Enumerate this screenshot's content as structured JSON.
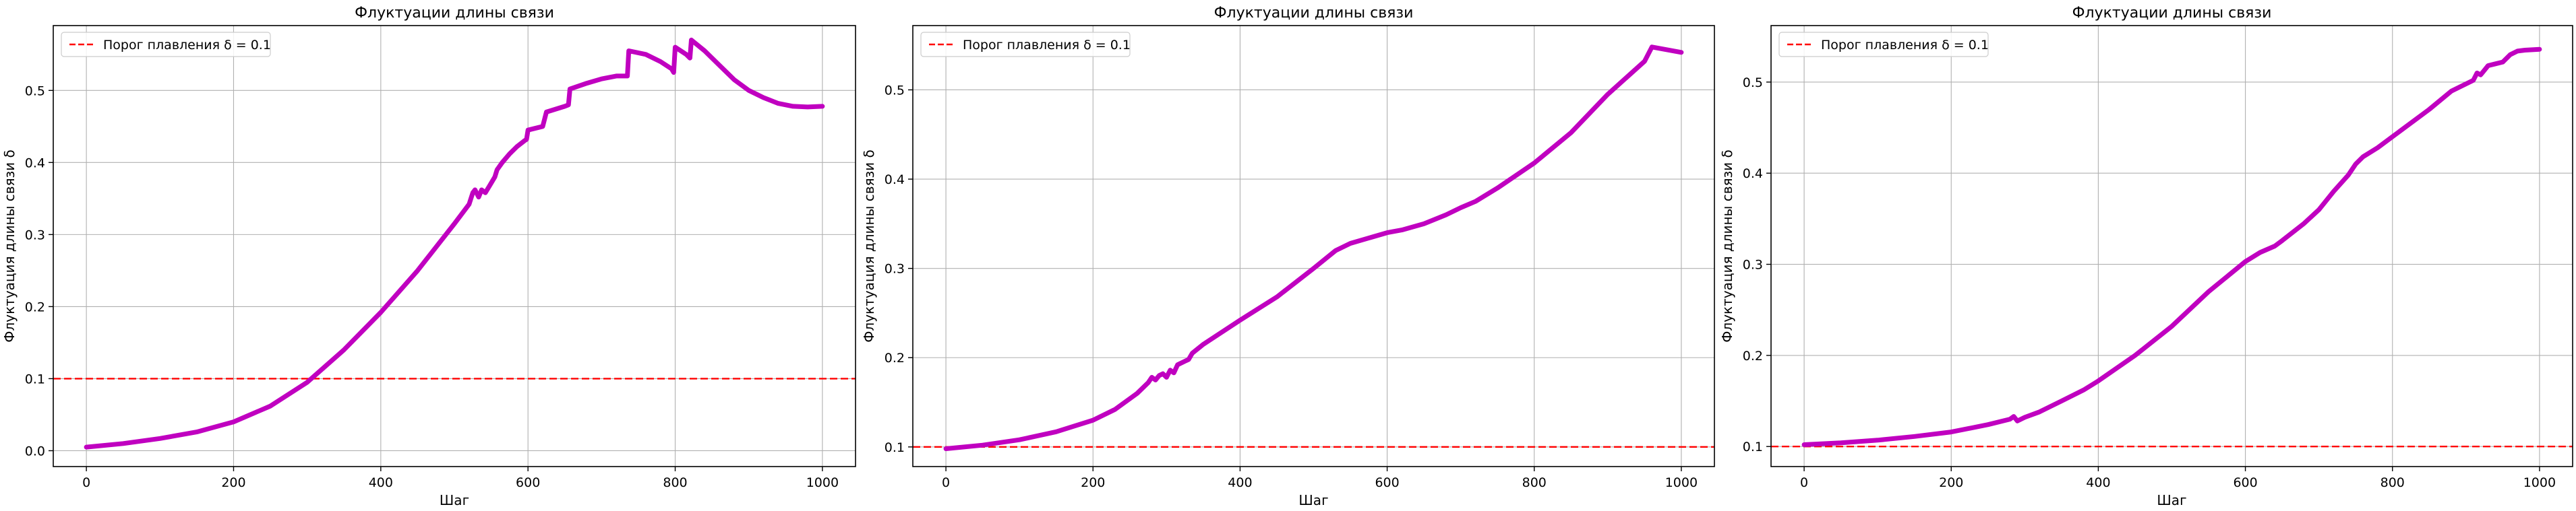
{
  "chart_data": [
    {
      "type": "line",
      "title": "Флуктуации длины связи",
      "xlabel": "Шаг",
      "ylabel": "Флуктуация длины связи δ",
      "xlim": [
        -45,
        1045
      ],
      "ylim": [
        -0.022,
        0.59
      ],
      "xticks": [
        0,
        200,
        400,
        600,
        800,
        1000
      ],
      "yticks": [
        0.0,
        0.1,
        0.2,
        0.3,
        0.4,
        0.5
      ],
      "grid": true,
      "legend_position": "top-left",
      "threshold": {
        "label": "Порог плавления δ = 0.1",
        "value": 0.1,
        "color": "#ff0000",
        "style": "dashed"
      },
      "series": [
        {
          "color": "#c000c0",
          "points": [
            [
              0,
              0.005
            ],
            [
              50,
              0.01
            ],
            [
              100,
              0.017
            ],
            [
              150,
              0.026
            ],
            [
              200,
              0.04
            ],
            [
              250,
              0.062
            ],
            [
              300,
              0.095
            ],
            [
              350,
              0.14
            ],
            [
              400,
              0.192
            ],
            [
              450,
              0.25
            ],
            [
              500,
              0.315
            ],
            [
              520,
              0.342
            ],
            [
              525,
              0.358
            ],
            [
              528,
              0.362
            ],
            [
              533,
              0.352
            ],
            [
              537,
              0.362
            ],
            [
              542,
              0.358
            ],
            [
              548,
              0.368
            ],
            [
              555,
              0.38
            ],
            [
              558,
              0.39
            ],
            [
              565,
              0.4
            ],
            [
              575,
              0.412
            ],
            [
              585,
              0.422
            ],
            [
              595,
              0.43
            ],
            [
              598,
              0.432
            ],
            [
              600,
              0.445
            ],
            [
              620,
              0.45
            ],
            [
              625,
              0.47
            ],
            [
              650,
              0.478
            ],
            [
              655,
              0.48
            ],
            [
              657,
              0.502
            ],
            [
              680,
              0.51
            ],
            [
              700,
              0.516
            ],
            [
              720,
              0.52
            ],
            [
              735,
              0.52
            ],
            [
              737,
              0.555
            ],
            [
              760,
              0.55
            ],
            [
              780,
              0.54
            ],
            [
              795,
              0.53
            ],
            [
              798,
              0.525
            ],
            [
              800,
              0.56
            ],
            [
              815,
              0.55
            ],
            [
              820,
              0.545
            ],
            [
              822,
              0.57
            ],
            [
              840,
              0.555
            ],
            [
              860,
              0.535
            ],
            [
              880,
              0.515
            ],
            [
              900,
              0.5
            ],
            [
              920,
              0.49
            ],
            [
              940,
              0.482
            ],
            [
              960,
              0.478
            ],
            [
              980,
              0.477
            ],
            [
              1000,
              0.478
            ]
          ]
        }
      ]
    },
    {
      "type": "line",
      "title": "Флуктуации длины связи",
      "xlabel": "Шаг",
      "ylabel": "Флуктуация длины связи δ",
      "xlim": [
        -45,
        1045
      ],
      "ylim": [
        0.078,
        0.572
      ],
      "xticks": [
        0,
        200,
        400,
        600,
        800,
        1000
      ],
      "yticks": [
        0.1,
        0.2,
        0.3,
        0.4,
        0.5
      ],
      "grid": true,
      "legend_position": "top-left",
      "threshold": {
        "label": "Порог плавления δ = 0.1",
        "value": 0.1,
        "color": "#ff0000",
        "style": "dashed"
      },
      "series": [
        {
          "color": "#c000c0",
          "points": [
            [
              0,
              0.098
            ],
            [
              50,
              0.102
            ],
            [
              100,
              0.108
            ],
            [
              150,
              0.117
            ],
            [
              200,
              0.13
            ],
            [
              230,
              0.142
            ],
            [
              260,
              0.16
            ],
            [
              275,
              0.172
            ],
            [
              280,
              0.178
            ],
            [
              285,
              0.175
            ],
            [
              290,
              0.18
            ],
            [
              295,
              0.182
            ],
            [
              300,
              0.178
            ],
            [
              305,
              0.186
            ],
            [
              310,
              0.183
            ],
            [
              315,
              0.192
            ],
            [
              325,
              0.196
            ],
            [
              330,
              0.198
            ],
            [
              335,
              0.205
            ],
            [
              350,
              0.215
            ],
            [
              400,
              0.242
            ],
            [
              450,
              0.268
            ],
            [
              500,
              0.3
            ],
            [
              530,
              0.32
            ],
            [
              550,
              0.328
            ],
            [
              600,
              0.34
            ],
            [
              620,
              0.343
            ],
            [
              650,
              0.35
            ],
            [
              680,
              0.36
            ],
            [
              700,
              0.368
            ],
            [
              720,
              0.375
            ],
            [
              750,
              0.39
            ],
            [
              800,
              0.418
            ],
            [
              850,
              0.452
            ],
            [
              900,
              0.495
            ],
            [
              950,
              0.532
            ],
            [
              960,
              0.548
            ],
            [
              980,
              0.545
            ],
            [
              1000,
              0.542
            ]
          ]
        }
      ]
    },
    {
      "type": "line",
      "title": "Флуктуации длины связи",
      "xlabel": "Шаг",
      "ylabel": "Флуктуация длины связи δ",
      "xlim": [
        -45,
        1045
      ],
      "ylim": [
        0.078,
        0.562
      ],
      "xticks": [
        0,
        200,
        400,
        600,
        800,
        1000
      ],
      "yticks": [
        0.1,
        0.2,
        0.3,
        0.4,
        0.5
      ],
      "grid": true,
      "legend_position": "top-left",
      "threshold": {
        "label": "Порог плавления δ = 0.1",
        "value": 0.1,
        "color": "#ff0000",
        "style": "dashed"
      },
      "series": [
        {
          "color": "#c000c0",
          "points": [
            [
              0,
              0.102
            ],
            [
              50,
              0.104
            ],
            [
              100,
              0.107
            ],
            [
              150,
              0.111
            ],
            [
              200,
              0.116
            ],
            [
              250,
              0.124
            ],
            [
              280,
              0.13
            ],
            [
              285,
              0.133
            ],
            [
              290,
              0.128
            ],
            [
              300,
              0.132
            ],
            [
              320,
              0.138
            ],
            [
              350,
              0.15
            ],
            [
              380,
              0.162
            ],
            [
              400,
              0.172
            ],
            [
              450,
              0.2
            ],
            [
              500,
              0.232
            ],
            [
              550,
              0.27
            ],
            [
              600,
              0.303
            ],
            [
              620,
              0.313
            ],
            [
              640,
              0.32
            ],
            [
              650,
              0.326
            ],
            [
              680,
              0.345
            ],
            [
              700,
              0.36
            ],
            [
              720,
              0.38
            ],
            [
              740,
              0.398
            ],
            [
              750,
              0.41
            ],
            [
              760,
              0.418
            ],
            [
              780,
              0.428
            ],
            [
              800,
              0.44
            ],
            [
              830,
              0.458
            ],
            [
              850,
              0.47
            ],
            [
              880,
              0.49
            ],
            [
              900,
              0.498
            ],
            [
              910,
              0.502
            ],
            [
              915,
              0.51
            ],
            [
              920,
              0.508
            ],
            [
              930,
              0.518
            ],
            [
              940,
              0.52
            ],
            [
              950,
              0.522
            ],
            [
              960,
              0.53
            ],
            [
              970,
              0.534
            ],
            [
              980,
              0.535
            ],
            [
              1000,
              0.536
            ]
          ]
        }
      ]
    }
  ]
}
